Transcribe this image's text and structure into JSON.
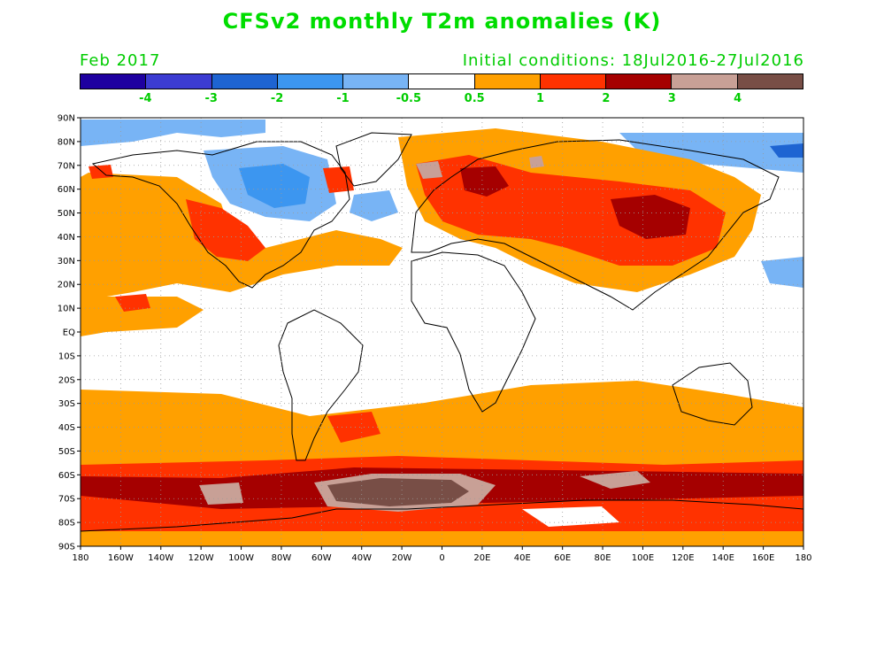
{
  "title": "CFSv2 monthly T2m anomalies (K)",
  "valid_month": "Feb 2017",
  "initial_conditions": "Initial conditions: 18Jul2016-27Jul2016",
  "colorbar": {
    "colors": [
      "#1e00a0",
      "#3c3cd2",
      "#1e64d2",
      "#3c96f0",
      "#78b4f5",
      "#ffffff",
      "#ffa000",
      "#ff3200",
      "#a50000",
      "#c8a096",
      "#784e46"
    ],
    "labels": [
      "-4",
      "-3",
      "-2",
      "-1",
      "-0.5",
      "0.5",
      "1",
      "2",
      "3",
      "4"
    ]
  },
  "lat_labels": [
    "90N",
    "80N",
    "70N",
    "60N",
    "50N",
    "40N",
    "30N",
    "20N",
    "10N",
    "EQ",
    "10S",
    "20S",
    "30S",
    "40S",
    "50S",
    "60S",
    "70S",
    "80S",
    "90S"
  ],
  "lon_labels": [
    "180",
    "160W",
    "140W",
    "120W",
    "100W",
    "80W",
    "60W",
    "40W",
    "20W",
    "0",
    "20E",
    "40E",
    "60E",
    "80E",
    "100E",
    "120E",
    "140E",
    "160E",
    "180"
  ]
}
